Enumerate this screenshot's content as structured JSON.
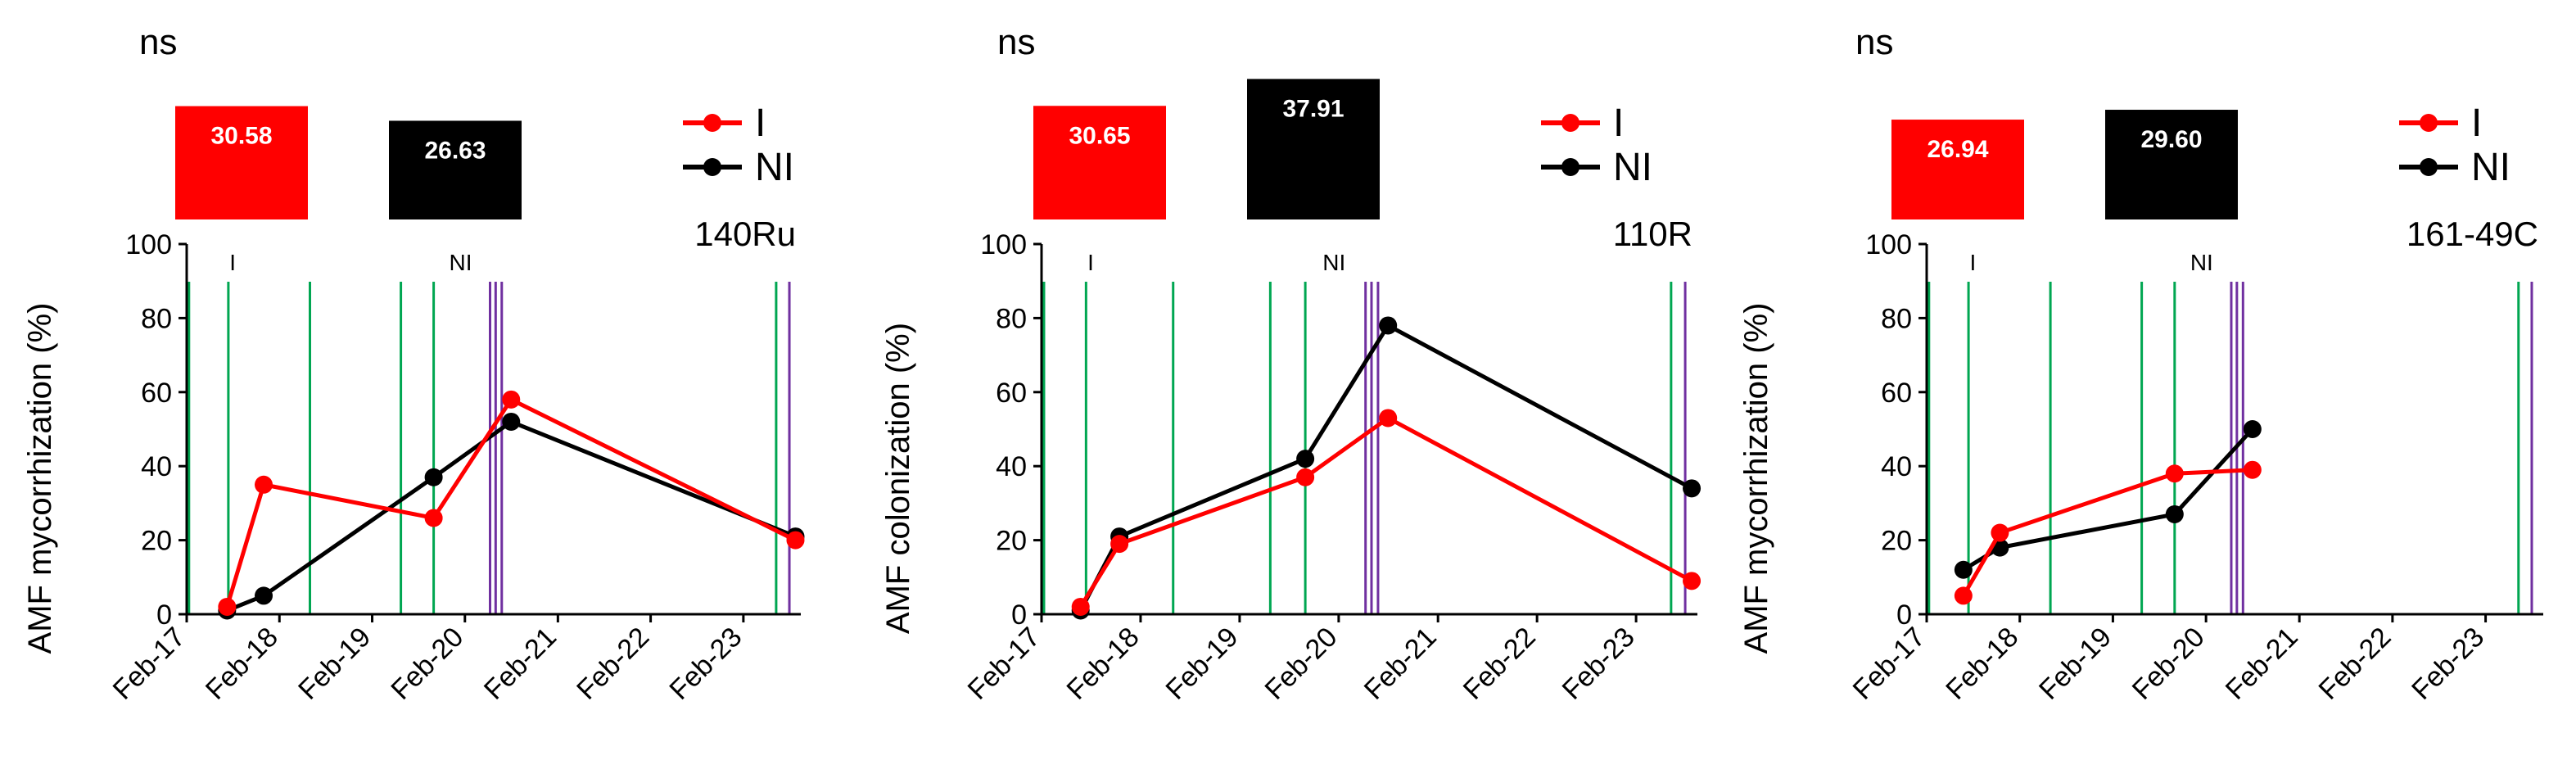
{
  "colors": {
    "I": "#ff0000",
    "NI": "#000000",
    "green_lines": "#00a651",
    "purple_lines": "#7030a0"
  },
  "chart_data": [
    {
      "type": "line",
      "panel_label": "140Ru",
      "significance": "ns",
      "ylabel": "AMF mycorrhization (%)",
      "ylim": [
        0,
        100
      ],
      "yticks": [
        "0",
        "20",
        "40",
        "60",
        "80",
        "100"
      ],
      "xlim": [
        "2017-02-01",
        "2023-09-15"
      ],
      "xticks": [
        {
          "date": "2017-02-01",
          "label": "Feb-17"
        },
        {
          "date": "2018-02-01",
          "label": "Feb-18"
        },
        {
          "date": "2019-02-01",
          "label": "Feb-19"
        },
        {
          "date": "2020-02-01",
          "label": "Feb-20"
        },
        {
          "date": "2021-02-01",
          "label": "Feb-21"
        },
        {
          "date": "2022-02-01",
          "label": "Feb-22"
        },
        {
          "date": "2023-02-01",
          "label": "Feb-23"
        }
      ],
      "bars": [
        {
          "name": "I",
          "value": 30.58,
          "label": "30.58"
        },
        {
          "name": "NI",
          "value": 26.63,
          "label": "26.63"
        }
      ],
      "period_labels": [
        {
          "text": "I",
          "date": "2017-08-01"
        },
        {
          "text": "NI",
          "date": "2020-01-15"
        }
      ],
      "green_lines": [
        "2017-02-10",
        "2017-07-15",
        "2018-06-01",
        "2019-05-25",
        "2019-10-01",
        "2023-06-10"
      ],
      "purple_lines": [
        "2020-05-10",
        "2020-06-01",
        "2020-06-25",
        "2023-08-01"
      ],
      "legend": [
        "I",
        "NI"
      ],
      "grid": false,
      "series": [
        {
          "name": "I",
          "x": [
            "2017-07-10",
            "2017-12-01",
            "2019-10-01",
            "2020-08-01",
            "2023-08-25"
          ],
          "y": [
            2,
            35,
            26,
            58,
            20
          ]
        },
        {
          "name": "NI",
          "x": [
            "2017-07-10",
            "2017-12-01",
            "2019-10-01",
            "2020-08-01",
            "2023-08-25"
          ],
          "y": [
            1,
            5,
            37,
            52,
            21
          ]
        }
      ]
    },
    {
      "type": "line",
      "panel_label": "110R",
      "significance": "ns",
      "ylabel": "AMF colonization (%)",
      "ylim": [
        0,
        100
      ],
      "yticks": [
        "0",
        "20",
        "40",
        "60",
        "80",
        "100"
      ],
      "xlim": [
        "2017-02-01",
        "2023-09-15"
      ],
      "xticks": [
        {
          "date": "2017-02-01",
          "label": "Feb-17"
        },
        {
          "date": "2018-02-01",
          "label": "Feb-18"
        },
        {
          "date": "2019-02-01",
          "label": "Feb-19"
        },
        {
          "date": "2020-02-01",
          "label": "Feb-20"
        },
        {
          "date": "2021-02-01",
          "label": "Feb-21"
        },
        {
          "date": "2022-02-01",
          "label": "Feb-22"
        },
        {
          "date": "2023-02-01",
          "label": "Feb-23"
        }
      ],
      "bars": [
        {
          "name": "I",
          "value": 30.65,
          "label": "30.65"
        },
        {
          "name": "NI",
          "value": 37.91,
          "label": "37.91"
        }
      ],
      "period_labels": [
        {
          "text": "I",
          "date": "2017-08-01"
        },
        {
          "text": "NI",
          "date": "2020-01-15"
        }
      ],
      "green_lines": [
        "2017-02-10",
        "2017-07-15",
        "2018-06-01",
        "2019-05-25",
        "2019-10-01",
        "2023-06-10"
      ],
      "purple_lines": [
        "2020-05-10",
        "2020-06-01",
        "2020-06-25",
        "2023-08-01"
      ],
      "legend": [
        "I",
        "NI"
      ],
      "grid": false,
      "series": [
        {
          "name": "I",
          "x": [
            "2017-06-25",
            "2017-11-15",
            "2019-10-01",
            "2020-08-01",
            "2023-08-25"
          ],
          "y": [
            2,
            19,
            37,
            53,
            9
          ]
        },
        {
          "name": "NI",
          "x": [
            "2017-06-25",
            "2017-11-15",
            "2019-10-01",
            "2020-08-01",
            "2023-08-25"
          ],
          "y": [
            1,
            21,
            42,
            78,
            34
          ]
        }
      ]
    },
    {
      "type": "line",
      "panel_label": "161-49C",
      "significance": "ns",
      "ylabel": "AMF mycorrhization (%)",
      "ylim": [
        0,
        100
      ],
      "yticks": [
        "0",
        "20",
        "40",
        "60",
        "80",
        "100"
      ],
      "xlim": [
        "2017-02-01",
        "2023-09-15"
      ],
      "xticks": [
        {
          "date": "2017-02-01",
          "label": "Feb-17"
        },
        {
          "date": "2018-02-01",
          "label": "Feb-18"
        },
        {
          "date": "2019-02-01",
          "label": "Feb-19"
        },
        {
          "date": "2020-02-01",
          "label": "Feb-20"
        },
        {
          "date": "2021-02-01",
          "label": "Feb-21"
        },
        {
          "date": "2022-02-01",
          "label": "Feb-22"
        },
        {
          "date": "2023-02-01",
          "label": "Feb-23"
        }
      ],
      "bars": [
        {
          "name": "I",
          "value": 26.94,
          "label": "26.94"
        },
        {
          "name": "NI",
          "value": 29.6,
          "label": "29.60"
        }
      ],
      "period_labels": [
        {
          "text": "I",
          "date": "2017-08-01"
        },
        {
          "text": "NI",
          "date": "2020-01-15"
        }
      ],
      "green_lines": [
        "2017-02-10",
        "2017-07-15",
        "2018-06-01",
        "2019-05-25",
        "2019-10-01",
        "2023-06-10"
      ],
      "purple_lines": [
        "2020-05-10",
        "2020-06-01",
        "2020-06-25",
        "2023-08-01"
      ],
      "legend": [
        "I",
        "NI"
      ],
      "grid": false,
      "series": [
        {
          "name": "I",
          "x": [
            "2017-06-25",
            "2017-11-15",
            "2019-10-01",
            "2020-08-01"
          ],
          "y": [
            5,
            22,
            38,
            39
          ]
        },
        {
          "name": "NI",
          "x": [
            "2017-06-25",
            "2017-11-15",
            "2019-10-01",
            "2020-08-01"
          ],
          "y": [
            12,
            18,
            27,
            50
          ]
        }
      ]
    }
  ]
}
